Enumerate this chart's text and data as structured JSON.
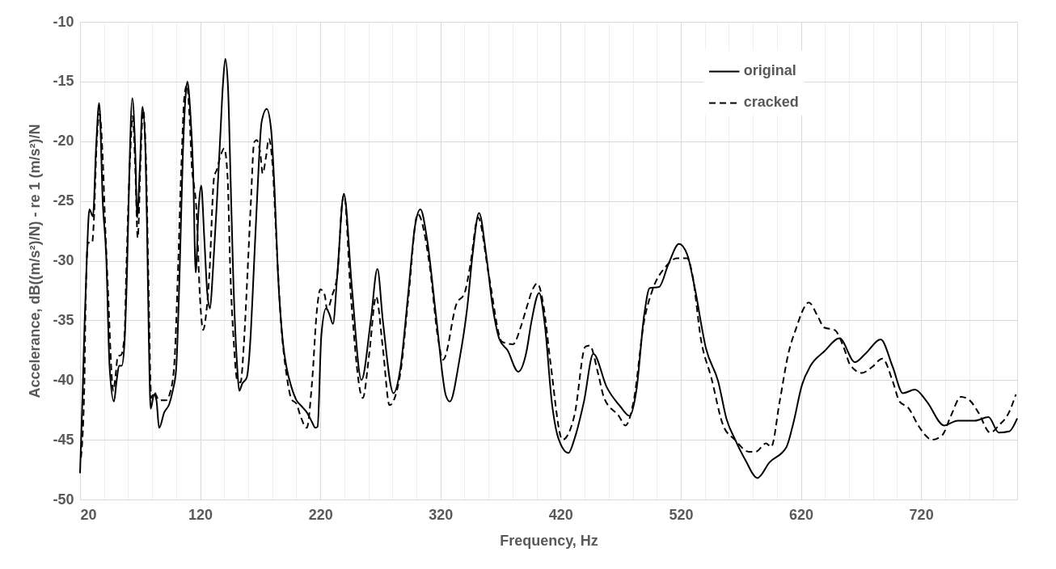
{
  "chart_data": {
    "type": "line",
    "xlabel": "Frequency, Hz",
    "ylabel": "Accelerance, dB((m/s²)/N) - re 1 (m/s²)/N",
    "xlim": [
      20,
      800
    ],
    "ylim": [
      -50,
      -10
    ],
    "xticks": [
      20,
      {
        "value": 40,
        "label": null
      },
      {
        "value": 60,
        "label": null
      },
      {
        "value": 80,
        "label": null
      },
      {
        "value": 100,
        "label": null
      },
      120,
      {
        "value": 140,
        "label": null
      },
      {
        "value": 160,
        "label": null
      },
      {
        "value": 180,
        "label": null
      },
      {
        "value": 200,
        "label": null
      },
      220,
      {
        "value": 240,
        "label": null
      },
      {
        "value": 260,
        "label": null
      },
      {
        "value": 280,
        "label": null
      },
      {
        "value": 300,
        "label": null
      },
      320,
      {
        "value": 340,
        "label": null
      },
      {
        "value": 360,
        "label": null
      },
      {
        "value": 380,
        "label": null
      },
      {
        "value": 400,
        "label": null
      },
      420,
      {
        "value": 440,
        "label": null
      },
      {
        "value": 460,
        "label": null
      },
      {
        "value": 480,
        "label": null
      },
      {
        "value": 500,
        "label": null
      },
      520,
      {
        "value": 540,
        "label": null
      },
      {
        "value": 560,
        "label": null
      },
      {
        "value": 580,
        "label": null
      },
      {
        "value": 600,
        "label": null
      },
      620,
      {
        "value": 640,
        "label": null
      },
      {
        "value": 660,
        "label": null
      },
      {
        "value": 680,
        "label": null
      },
      {
        "value": 700,
        "label": null
      },
      720,
      {
        "value": 740,
        "label": null
      },
      {
        "value": 760,
        "label": null
      },
      {
        "value": 780,
        "label": null
      }
    ],
    "yticks": [
      -50,
      -45,
      -40,
      -35,
      -30,
      -25,
      -20,
      -15,
      -10
    ],
    "grid": true,
    "legend": "top right",
    "series": [
      {
        "name": "original",
        "color": "#000000",
        "line_style": "solid",
        "x": [
          20,
          22.3,
          23.7,
          25.6,
          27.8,
          30.7,
          33.4,
          35.9,
          39.0,
          41.7,
          44.6,
          48.2,
          50.5,
          52.5,
          54.7,
          57.0,
          59.0,
          60.4,
          63.5,
          66.0,
          67.5,
          69.7,
          72.0,
          74.5,
          75.9,
          77.3,
          78.8,
          81.6,
          83.6,
          85.8,
          90.1,
          94.3,
          97.1,
          99.9,
          102.8,
          105.6,
          107.9,
          109.3,
          111.8,
          114.1,
          116.3,
          118.6,
          120.8,
          123.4,
          125.9,
          128.2,
          130.5,
          133.8,
          136.7,
          138.9,
          140.9,
          143.2,
          145.1,
          147.4,
          150.8,
          152.5,
          155.0,
          158.7,
          162.1,
          164.4,
          167.7,
          171.1,
          175.4,
          179.0,
          181.9,
          184.7,
          188.9,
          191.8,
          196.0,
          200.2,
          204.5,
          208.7,
          213.0,
          215.8,
          217.7,
          220.8,
          224.8,
          227.6,
          230.5,
          234.1,
          239.6,
          246.3,
          254.2,
          262.0,
          267.5,
          272.0,
          280.9,
          286.5,
          293.2,
          298.8,
          303.3,
          308.8,
          316.7,
          324.5,
          327.8,
          335.6,
          342.3,
          346.8,
          352.1,
          357.9,
          363.5,
          369.1,
          375.8,
          384.7,
          391.4,
          395.9,
          402.1,
          407.0,
          412.6,
          418.2,
          426.5,
          431.6,
          439.4,
          447.2,
          458.4,
          469.6,
          477.4,
          483.0,
          489.6,
          494.1,
          501.9,
          509.7,
          518.5,
          525.4,
          531.1,
          541.1,
          551.1,
          558.2,
          565.3,
          573.8,
          583.8,
          593.8,
          608.0,
          613.7,
          620.9,
          628.0,
          639.4,
          652.2,
          665.0,
          673.6,
          686.4,
          696.4,
          704.9,
          714.9,
          724.8,
          739.1,
          750.5,
          764.7,
          776.1,
          784.7,
          793.2,
          800
        ],
        "values": [
          -47.8,
          -40.6,
          -35.5,
          -29.9,
          -25.7,
          -26.3,
          -20.4,
          -16.8,
          -25.3,
          -29.4,
          -38.9,
          -41.8,
          -40.0,
          -38.8,
          -38.8,
          -36.9,
          -31.2,
          -25.3,
          -16.4,
          -21.0,
          -26.4,
          -22.4,
          -17.1,
          -21.0,
          -28.1,
          -36.9,
          -42.4,
          -41.2,
          -41.7,
          -44.0,
          -42.7,
          -42.0,
          -40.9,
          -39.2,
          -31.2,
          -21.0,
          -16.1,
          -15.0,
          -17.6,
          -22.4,
          -31.0,
          -25.8,
          -23.7,
          -28.1,
          -32.7,
          -34.0,
          -31.0,
          -25.3,
          -19.6,
          -15.3,
          -13.1,
          -15.6,
          -22.4,
          -31.0,
          -38.9,
          -40.9,
          -40.3,
          -39.8,
          -36.1,
          -31.2,
          -24.1,
          -18.4,
          -17.3,
          -19.0,
          -24.1,
          -31.0,
          -36.9,
          -38.9,
          -40.6,
          -41.7,
          -42.2,
          -42.7,
          -43.5,
          -44.0,
          -43.9,
          -36.3,
          -34.0,
          -34.5,
          -35.3,
          -31.2,
          -24.4,
          -32.3,
          -40.0,
          -35.0,
          -30.7,
          -35.0,
          -41.1,
          -39.1,
          -32.7,
          -27.1,
          -25.7,
          -28.2,
          -35.0,
          -41.3,
          -41.8,
          -38.4,
          -33.9,
          -29.4,
          -26.0,
          -29.4,
          -33.9,
          -36.6,
          -37.5,
          -39.3,
          -37.7,
          -35.0,
          -32.7,
          -35.5,
          -41.8,
          -44.9,
          -46.1,
          -44.9,
          -41.8,
          -37.8,
          -40.6,
          -42.2,
          -43.0,
          -40.9,
          -34.5,
          -32.3,
          -32.2,
          -30.3,
          -28.6,
          -29.5,
          -32.0,
          -37.4,
          -40.1,
          -43.3,
          -45.0,
          -46.7,
          -48.2,
          -46.9,
          -45.6,
          -43.6,
          -40.4,
          -38.8,
          -37.6,
          -36.5,
          -38.5,
          -37.8,
          -36.6,
          -38.9,
          -41.1,
          -40.8,
          -41.8,
          -43.8,
          -43.4,
          -43.4,
          -43.1,
          -44.4,
          -44.3,
          -43.2
        ]
      },
      {
        "name": "cracked",
        "color": "#000000",
        "line_style": "dashed",
        "x": [
          20.8,
          23.7,
          24.5,
          26.7,
          30.1,
          31.2,
          34.1,
          36.3,
          38.6,
          40.8,
          43.1,
          47.7,
          49.7,
          51.4,
          54.2,
          57.0,
          58.4,
          61.8,
          63.8,
          66.0,
          68.0,
          70.3,
          72.5,
          75.1,
          76.8,
          79.3,
          81.6,
          85.8,
          91.5,
          95.1,
          98.5,
          101.4,
          104.2,
          107.0,
          109.0,
          111.2,
          113.2,
          114.6,
          116.9,
          119.7,
          122.5,
          124.8,
          127.6,
          131.6,
          133.8,
          136.7,
          140.0,
          142.8,
          145.1,
          148.0,
          150.8,
          153.6,
          156.4,
          159.3,
          162.1,
          164.9,
          166.9,
          170.0,
          172.0,
          174.8,
          177.1,
          180.5,
          183.3,
          187.5,
          191.8,
          196.0,
          200.2,
          203.1,
          208.7,
          213.0,
          217.2,
          220.0,
          223.7,
          225.6,
          229.9,
          234.1,
          238.4,
          239.8,
          245.2,
          255.3,
          260.8,
          266.4,
          272.0,
          277.6,
          286.5,
          293.2,
          301.0,
          311.1,
          317.8,
          322.2,
          333.4,
          340.1,
          344.6,
          351.3,
          360.2,
          371.3,
          380.3,
          387.0,
          391.5,
          397.2,
          400.6,
          405.8,
          411.5,
          421.6,
          431.6,
          440.6,
          444.2,
          451.3,
          456.2,
          468.4,
          474.0,
          480.7,
          489.6,
          496.3,
          507.5,
          516.9,
          525.4,
          529.7,
          536.8,
          545.4,
          555.3,
          565.0,
          576.7,
          582.4,
          591.0,
          595.2,
          602.3,
          609.5,
          616.6,
          620.9,
          626.6,
          633.7,
          639.4,
          648.0,
          656.5,
          660.8,
          670.7,
          679.3,
          687.8,
          696.4,
          702.1,
          709.2,
          717.7,
          723.4,
          729.1,
          737.7,
          744.8,
          753.3,
          760.5,
          767.6,
          777.6,
          784.7,
          793.2,
          798.9
        ],
        "values": [
          -46.5,
          -39.8,
          -34.4,
          -28.5,
          -28.5,
          -27.2,
          -19.7,
          -17.7,
          -20.8,
          -26.7,
          -32.1,
          -40.9,
          -39.5,
          -38.0,
          -37.9,
          -36.3,
          -31.2,
          -21.0,
          -17.9,
          -22.4,
          -28.1,
          -21.8,
          -17.4,
          -22.4,
          -31.0,
          -41.5,
          -41.0,
          -41.7,
          -41.7,
          -41.0,
          -38.6,
          -31.2,
          -22.4,
          -16.1,
          -15.3,
          -18.1,
          -22.4,
          -23.5,
          -25.8,
          -32.9,
          -35.8,
          -34.6,
          -31.2,
          -23.0,
          -22.4,
          -21.3,
          -20.6,
          -23.0,
          -31.0,
          -36.9,
          -40.0,
          -40.2,
          -36.9,
          -31.2,
          -25.3,
          -20.1,
          -19.9,
          -21.0,
          -22.7,
          -21.3,
          -19.8,
          -22.4,
          -28.1,
          -35.5,
          -39.5,
          -41.6,
          -42.0,
          -42.9,
          -44.0,
          -40.3,
          -34.1,
          -32.4,
          -32.9,
          -34.1,
          -32.9,
          -31.2,
          -25.0,
          -24.5,
          -32.7,
          -41.5,
          -37.7,
          -33.0,
          -37.3,
          -42.1,
          -39.5,
          -33.2,
          -26.1,
          -30.5,
          -36.4,
          -38.3,
          -33.6,
          -32.7,
          -30.5,
          -26.4,
          -31.2,
          -36.8,
          -37.0,
          -35.5,
          -34.0,
          -32.3,
          -31.9,
          -33.8,
          -38.5,
          -45.0,
          -42.9,
          -37.2,
          -37.1,
          -39.5,
          -41.5,
          -43.0,
          -43.8,
          -41.8,
          -35.0,
          -32.5,
          -30.5,
          -29.8,
          -29.8,
          -31.2,
          -36.6,
          -39.8,
          -43.8,
          -45.0,
          -46.0,
          -46.0,
          -45.3,
          -45.6,
          -41.8,
          -37.8,
          -35.5,
          -34.3,
          -33.5,
          -34.6,
          -35.6,
          -35.8,
          -37.5,
          -38.7,
          -39.4,
          -38.9,
          -38.2,
          -40.1,
          -41.8,
          -42.3,
          -43.8,
          -44.6,
          -45.0,
          -44.6,
          -43.0,
          -41.4,
          -41.7,
          -42.7,
          -44.4,
          -43.8,
          -42.7,
          -41.2
        ]
      }
    ]
  }
}
